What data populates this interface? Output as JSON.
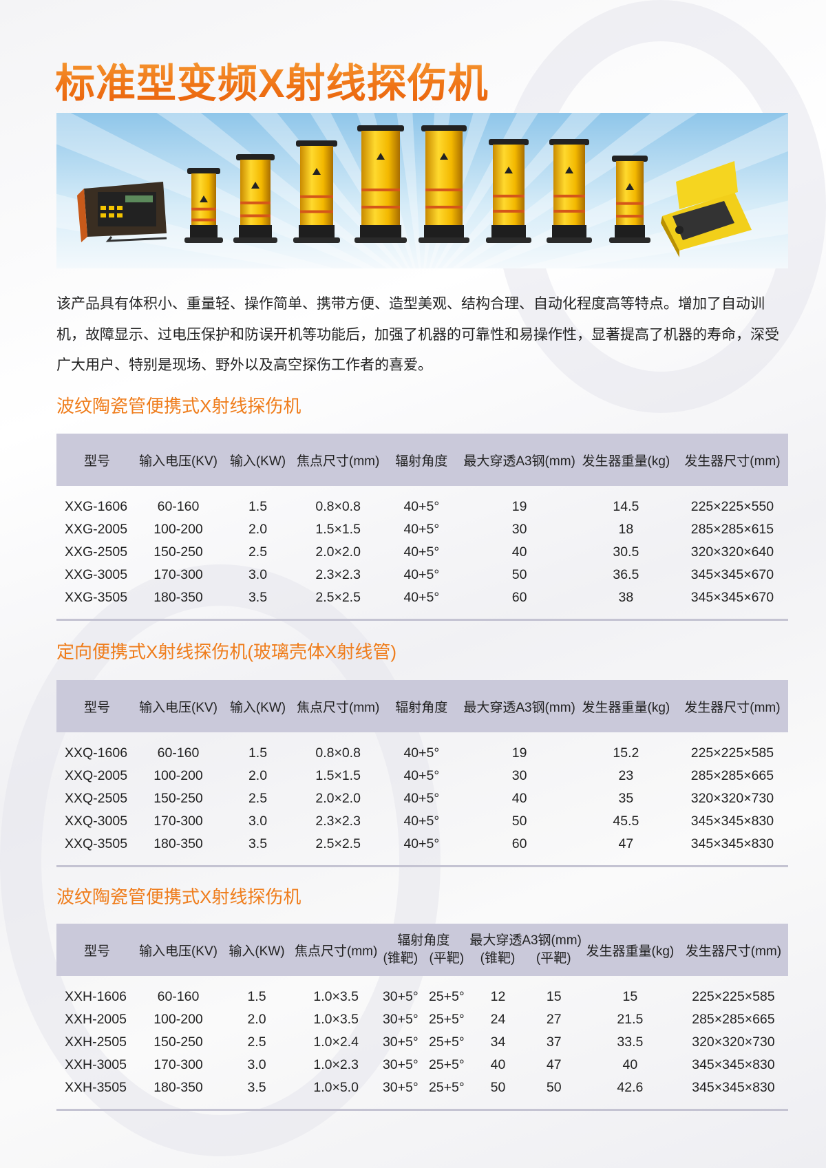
{
  "title": "标准型变频X射线探伤机",
  "intro": "该产品具有体积小、重量轻、操作简单、携带方便、造型美观、结构合理、自动化程度高等特点。增加了自动训机，故障显示、过电压保护和防误开机等功能后，加强了机器的可靠性和易操作性，显著提高了机器的寿命，深受广大用户、特别是现场、野外以及高空探伤工作者的喜爱。",
  "colors": {
    "accent": "#ef7d1c",
    "table_header": "#cac9da",
    "product_yellow": "#f5c400"
  },
  "sections": [
    {
      "heading": "波纹陶瓷管便携式X射线探伤机",
      "headers": [
        "型号",
        "输入电压(KV)",
        "输入(KW)",
        "焦点尺寸(mm)",
        "辐射角度",
        "最大穿透A3钢(mm)",
        "发生器重量(kg)",
        "发生器尺寸(mm)"
      ],
      "rows": [
        [
          "XXG-1606",
          "60-160",
          "1.5",
          "0.8×0.8",
          "40+5°",
          "19",
          "14.5",
          "225×225×550"
        ],
        [
          "XXG-2005",
          "100-200",
          "2.0",
          "1.5×1.5",
          "40+5°",
          "30",
          "18",
          "285×285×615"
        ],
        [
          "XXG-2505",
          "150-250",
          "2.5",
          "2.0×2.0",
          "40+5°",
          "40",
          "30.5",
          "320×320×640"
        ],
        [
          "XXG-3005",
          "170-300",
          "3.0",
          "2.3×2.3",
          "40+5°",
          "50",
          "36.5",
          "345×345×670"
        ],
        [
          "XXG-3505",
          "180-350",
          "3.5",
          "2.5×2.5",
          "40+5°",
          "60",
          "38",
          "345×345×670"
        ]
      ]
    },
    {
      "heading": "定向便携式X射线探伤机(玻璃壳体X射线管)",
      "headers": [
        "型号",
        "输入电压(KV)",
        "输入(KW)",
        "焦点尺寸(mm)",
        "辐射角度",
        "最大穿透A3钢(mm)",
        "发生器重量(kg)",
        "发生器尺寸(mm)"
      ],
      "rows": [
        [
          "XXQ-1606",
          "60-160",
          "1.5",
          "0.8×0.8",
          "40+5°",
          "19",
          "15.2",
          "225×225×585"
        ],
        [
          "XXQ-2005",
          "100-200",
          "2.0",
          "1.5×1.5",
          "40+5°",
          "30",
          "23",
          "285×285×665"
        ],
        [
          "XXQ-2505",
          "150-250",
          "2.5",
          "2.0×2.0",
          "40+5°",
          "40",
          "35",
          "320×320×730"
        ],
        [
          "XXQ-3005",
          "170-300",
          "3.0",
          "2.3×2.3",
          "40+5°",
          "50",
          "45.5",
          "345×345×830"
        ],
        [
          "XXQ-3505",
          "180-350",
          "3.5",
          "2.5×2.5",
          "40+5°",
          "60",
          "47",
          "345×345×830"
        ]
      ]
    },
    {
      "heading": "波纹陶瓷管便携式X射线探伤机",
      "headers": [
        "型号",
        "输入电压(KV)",
        "输入(KW)",
        "焦点尺寸(mm)",
        "辐射角度",
        "最大穿透A3钢(mm)",
        "发生器重量(kg)",
        "发生器尺寸(mm)"
      ],
      "subheaders": [
        "(锥靶)",
        "(平靶)",
        "(锥靶)",
        "(平靶)"
      ],
      "rows": [
        [
          "XXH-1606",
          "60-160",
          "1.5",
          "1.0×3.5",
          "30+5°",
          "25+5°",
          "12",
          "15",
          "15",
          "225×225×585"
        ],
        [
          "XXH-2005",
          "100-200",
          "2.0",
          "1.0×3.5",
          "30+5°",
          "25+5°",
          "24",
          "27",
          "21.5",
          "285×285×665"
        ],
        [
          "XXH-2505",
          "150-250",
          "2.5",
          "1.0×2.4",
          "30+5°",
          "25+5°",
          "34",
          "37",
          "33.5",
          "320×320×730"
        ],
        [
          "XXH-3005",
          "170-300",
          "3.0",
          "1.0×2.3",
          "30+5°",
          "25+5°",
          "40",
          "47",
          "40",
          "345×345×830"
        ],
        [
          "XXH-3505",
          "180-350",
          "3.5",
          "1.0×5.0",
          "30+5°",
          "25+5°",
          "50",
          "50",
          "42.6",
          "345×345×830"
        ]
      ]
    }
  ]
}
